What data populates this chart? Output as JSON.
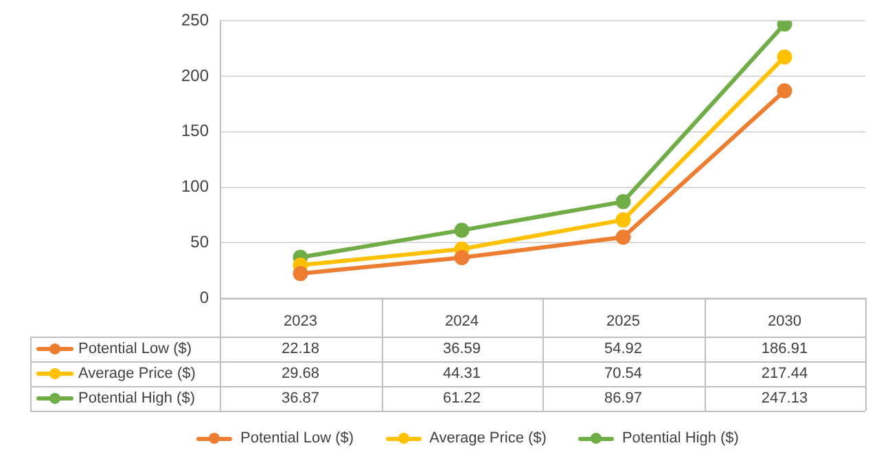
{
  "chart_data": {
    "type": "line",
    "categories": [
      "2023",
      "2024",
      "2025",
      "2030"
    ],
    "series": [
      {
        "name": "Potential Low ($)",
        "color": "#ed7d31",
        "values": [
          22.18,
          36.59,
          54.92,
          186.91
        ]
      },
      {
        "name": "Average Price ($)",
        "color": "#ffc000",
        "values": [
          29.68,
          44.31,
          70.54,
          217.44
        ]
      },
      {
        "name": "Potential High ($)",
        "color": "#70ad47",
        "values": [
          36.87,
          61.22,
          86.97,
          247.13
        ]
      }
    ],
    "ylim": [
      0,
      250
    ],
    "yticks": [
      0,
      50,
      100,
      150,
      200,
      250
    ],
    "grid": "y",
    "legend": "bottom",
    "marker": "circle",
    "line_style": "solid",
    "data_labels": true
  }
}
